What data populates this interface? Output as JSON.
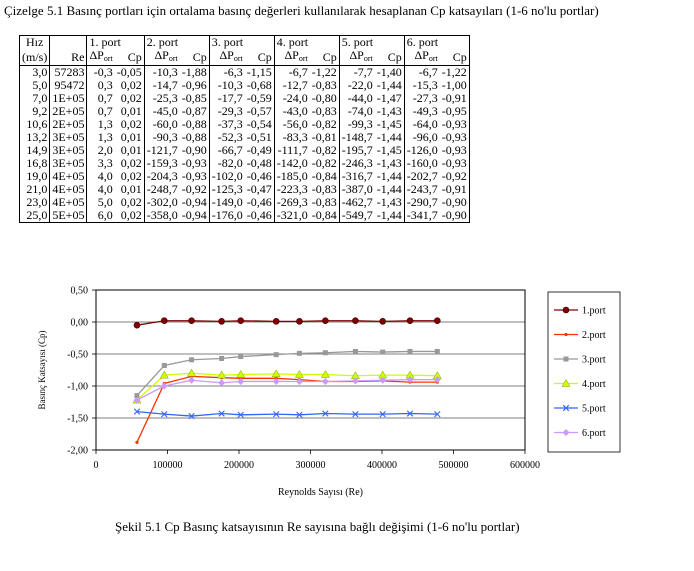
{
  "table_caption": "Çizelge 5.1   Basınç portları için ortalama basınç değerleri kullanılarak hesaplanan Cp katsayıları (1-6 no'lu portlar)",
  "table": {
    "col_speed": [
      "Hız",
      "(m/s)"
    ],
    "col_re": "Re",
    "ports": [
      "1. port",
      "2. port",
      "3. port",
      "4. port",
      "5. port",
      "6. port"
    ],
    "dp_label": "ΔP",
    "dp_sub": "ort",
    "cp_label": "Cp",
    "rows": [
      [
        "3,0",
        "57283",
        "-0,3",
        "-0,05",
        "-10,3",
        "-1,88",
        "-6,3",
        "-1,15",
        "-6,7",
        "-1,22",
        "-7,7",
        "-1,40",
        "-6,7",
        "-1,22"
      ],
      [
        "5,0",
        "95472",
        "0,3",
        "0,02",
        "-14,7",
        "-0,96",
        "-10,3",
        "-0,68",
        "-12,7",
        "-0,83",
        "-22,0",
        "-1,44",
        "-15,3",
        "-1,00"
      ],
      [
        "7,0",
        "1E+05",
        "0,7",
        "0,02",
        "-25,3",
        "-0,85",
        "-17,7",
        "-0,59",
        "-24,0",
        "-0,80",
        "-44,0",
        "-1,47",
        "-27,3",
        "-0,91"
      ],
      [
        "9,2",
        "2E+05",
        "0,7",
        "0,01",
        "-45,0",
        "-0,87",
        "-29,3",
        "-0,57",
        "-43,0",
        "-0,83",
        "-74,0",
        "-1,43",
        "-49,3",
        "-0,95"
      ],
      [
        "10,6",
        "2E+05",
        "1,3",
        "0,02",
        "-60,0",
        "-0,88",
        "-37,3",
        "-0,54",
        "-56,0",
        "-0,82",
        "-99,3",
        "-1,45",
        "-64,0",
        "-0,93"
      ],
      [
        "13,2",
        "3E+05",
        "1,3",
        "0,01",
        "-90,3",
        "-0,88",
        "-52,3",
        "-0,51",
        "-83,3",
        "-0,81",
        "-148,7",
        "-1,44",
        "-96,0",
        "-0,93"
      ],
      [
        "14,9",
        "3E+05",
        "2,0",
        "0,01",
        "-121,7",
        "-0,90",
        "-66,7",
        "-0,49",
        "-111,7",
        "-0,82",
        "-195,7",
        "-1,45",
        "-126,0",
        "-0,93"
      ],
      [
        "16,8",
        "3E+05",
        "3,3",
        "0,02",
        "-159,3",
        "-0,93",
        "-82,0",
        "-0,48",
        "-142,0",
        "-0,82",
        "-246,3",
        "-1,43",
        "-160,0",
        "-0,93"
      ],
      [
        "19,0",
        "4E+05",
        "4,0",
        "0,02",
        "-204,3",
        "-0,93",
        "-102,0",
        "-0,46",
        "-185,0",
        "-0,84",
        "-316,7",
        "-1,44",
        "-202,7",
        "-0,92"
      ],
      [
        "21,0",
        "4E+05",
        "4,0",
        "0,01",
        "-248,7",
        "-0,92",
        "-125,3",
        "-0,47",
        "-223,3",
        "-0,83",
        "-387,0",
        "-1,44",
        "-243,7",
        "-0,91"
      ],
      [
        "23,0",
        "4E+05",
        "5,0",
        "0,02",
        "-302,0",
        "-0,94",
        "-149,0",
        "-0,46",
        "-269,3",
        "-0,83",
        "-462,7",
        "-1,43",
        "-290,7",
        "-0,90"
      ],
      [
        "25,0",
        "5E+05",
        "6,0",
        "0,02",
        "-358,0",
        "-0,94",
        "-176,0",
        "-0,46",
        "-321,0",
        "-0,84",
        "-549,7",
        "-1,44",
        "-341,7",
        "-0,90"
      ]
    ]
  },
  "chart_data": {
    "type": "line",
    "title": "",
    "xlabel": "Reynolds Sayısı (Re)",
    "ylabel": "Basınç Katsayısı (Cp)",
    "xlim": [
      0,
      600000
    ],
    "ylim": [
      -2.0,
      0.5
    ],
    "xticks": [
      "0",
      "100000",
      "200000",
      "300000",
      "400000",
      "500000",
      "600000"
    ],
    "yticks": [
      "0,50",
      "0,00",
      "-0,50",
      "-1,00",
      "-1,50",
      "-2,00"
    ],
    "grid": "horizontal",
    "legend": "right",
    "x": [
      57283,
      95472,
      133661,
      175677,
      202417,
      252047,
      284508,
      320786,
      362795,
      400984,
      439173,
      477362
    ],
    "series": [
      {
        "name": "1.port",
        "color": "#800000",
        "marker": "circle",
        "values": [
          -0.05,
          0.02,
          0.02,
          0.01,
          0.02,
          0.01,
          0.01,
          0.02,
          0.02,
          0.01,
          0.02,
          0.02
        ]
      },
      {
        "name": "2.port",
        "color": "#ff3300",
        "marker": "dot",
        "values": [
          -1.88,
          -0.96,
          -0.85,
          -0.87,
          -0.88,
          -0.88,
          -0.9,
          -0.93,
          -0.93,
          -0.92,
          -0.94,
          -0.94
        ]
      },
      {
        "name": "3.port",
        "color": "#999999",
        "marker": "square",
        "values": [
          -1.15,
          -0.68,
          -0.59,
          -0.57,
          -0.54,
          -0.51,
          -0.49,
          -0.48,
          -0.46,
          -0.47,
          -0.46,
          -0.46
        ]
      },
      {
        "name": "4.port",
        "color": "#ccff00",
        "marker": "triangle",
        "values": [
          -1.22,
          -0.83,
          -0.8,
          -0.83,
          -0.82,
          -0.81,
          -0.82,
          -0.82,
          -0.84,
          -0.83,
          -0.83,
          -0.84
        ]
      },
      {
        "name": "5.port",
        "color": "#3366ff",
        "marker": "x",
        "values": [
          -1.4,
          -1.44,
          -1.47,
          -1.43,
          -1.45,
          -1.44,
          -1.45,
          -1.43,
          -1.44,
          -1.44,
          -1.43,
          -1.44
        ]
      },
      {
        "name": "6.port",
        "color": "#cc99ff",
        "marker": "diamond",
        "values": [
          -1.22,
          -1.0,
          -0.91,
          -0.95,
          -0.93,
          -0.93,
          -0.93,
          -0.93,
          -0.92,
          -0.91,
          -0.9,
          -0.9
        ]
      }
    ]
  },
  "figure_caption": "Şekil 5.1   Cp Basınç katsayısının Re sayısına bağlı değişimi (1-6 no'lu portlar)"
}
